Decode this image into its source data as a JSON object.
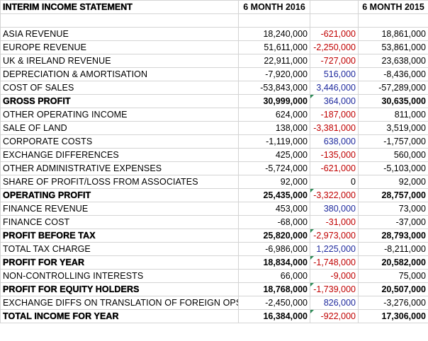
{
  "header": {
    "title": "INTERIM INCOME STATEMENT",
    "col_a": "6 MONTH 2016",
    "col_b": "6 MONTH 2015"
  },
  "colors": {
    "negative_diff": "#c00000",
    "positive_diff": "#1f2a9e",
    "error_marker": "#2e8b57"
  },
  "rows": [
    {
      "label": "ASIA REVENUE",
      "a": "18,240,000",
      "diff": "-621,000",
      "b": "18,861,000",
      "sign": "neg",
      "bold": false,
      "marker": false
    },
    {
      "label": "EUROPE REVENUE",
      "a": "51,611,000",
      "diff": "-2,250,000",
      "b": "53,861,000",
      "sign": "neg",
      "bold": false,
      "marker": false
    },
    {
      "label": "UK & IRELAND REVENUE",
      "a": "22,911,000",
      "diff": "-727,000",
      "b": "23,638,000",
      "sign": "neg",
      "bold": false,
      "marker": false
    },
    {
      "label": "DEPRECIATION & AMORTISATION",
      "a": "-7,920,000",
      "diff": "516,000",
      "b": "-8,436,000",
      "sign": "pos",
      "bold": false,
      "marker": false
    },
    {
      "label": "COST OF SALES",
      "a": "-53,843,000",
      "diff": "3,446,000",
      "b": "-57,289,000",
      "sign": "pos",
      "bold": false,
      "marker": false
    },
    {
      "label": "GROSS PROFIT",
      "a": "30,999,000",
      "diff": "364,000",
      "b": "30,635,000",
      "sign": "pos",
      "bold": true,
      "marker": true
    },
    {
      "label": "OTHER OPERATING INCOME",
      "a": "624,000",
      "diff": "-187,000",
      "b": "811,000",
      "sign": "neg",
      "bold": false,
      "marker": false
    },
    {
      "label": "SALE OF LAND",
      "a": "138,000",
      "diff": "-3,381,000",
      "b": "3,519,000",
      "sign": "neg",
      "bold": false,
      "marker": false
    },
    {
      "label": "CORPORATE COSTS",
      "a": "-1,119,000",
      "diff": "638,000",
      "b": "-1,757,000",
      "sign": "pos",
      "bold": false,
      "marker": false
    },
    {
      "label": "EXCHANGE DIFFERENCES",
      "a": "425,000",
      "diff": "-135,000",
      "b": "560,000",
      "sign": "neg",
      "bold": false,
      "marker": false
    },
    {
      "label": "OTHER ADMINISTRATIVE EXPENSES",
      "a": "-5,724,000",
      "diff": "-621,000",
      "b": "-5,103,000",
      "sign": "neg",
      "bold": false,
      "marker": false
    },
    {
      "label": "SHARE OF PROFIT/LOSS FROM ASSOCIATES",
      "a": "92,000",
      "diff": "0",
      "b": "92,000",
      "sign": "zero",
      "bold": false,
      "marker": false
    },
    {
      "label": "OPERATING PROFIT",
      "a": "25,435,000",
      "diff": "-3,322,000",
      "b": "28,757,000",
      "sign": "neg",
      "bold": true,
      "marker": true
    },
    {
      "label": "FINANCE REVENUE",
      "a": "453,000",
      "diff": "380,000",
      "b": "73,000",
      "sign": "pos",
      "bold": false,
      "marker": false
    },
    {
      "label": "FINANCE COST",
      "a": "-68,000",
      "diff": "-31,000",
      "b": "-37,000",
      "sign": "neg",
      "bold": false,
      "marker": false
    },
    {
      "label": "PROFIT BEFORE TAX",
      "a": "25,820,000",
      "diff": "-2,973,000",
      "b": "28,793,000",
      "sign": "neg",
      "bold": true,
      "marker": true
    },
    {
      "label": "TOTAL TAX CHARGE",
      "a": "-6,986,000",
      "diff": "1,225,000",
      "b": "-8,211,000",
      "sign": "pos",
      "bold": false,
      "marker": false
    },
    {
      "label": "PROFIT FOR YEAR",
      "a": "18,834,000",
      "diff": "-1,748,000",
      "b": "20,582,000",
      "sign": "neg",
      "bold": true,
      "marker": true
    },
    {
      "label": "NON-CONTROLLING INTERESTS",
      "a": "66,000",
      "diff": "-9,000",
      "b": "75,000",
      "sign": "neg",
      "bold": false,
      "marker": false
    },
    {
      "label": "PROFIT FOR EQUITY HOLDERS",
      "a": "18,768,000",
      "diff": "-1,739,000",
      "b": "20,507,000",
      "sign": "neg",
      "bold": true,
      "marker": true
    },
    {
      "label": "EXCHANGE DIFFS ON TRANSLATION OF FOREIGN OPS",
      "a": "-2,450,000",
      "diff": "826,000",
      "b": "-3,276,000",
      "sign": "pos",
      "bold": false,
      "marker": false
    },
    {
      "label": "TOTAL INCOME FOR YEAR",
      "a": "16,384,000",
      "diff": "-922,000",
      "b": "17,306,000",
      "sign": "neg",
      "bold": true,
      "marker": true
    }
  ]
}
